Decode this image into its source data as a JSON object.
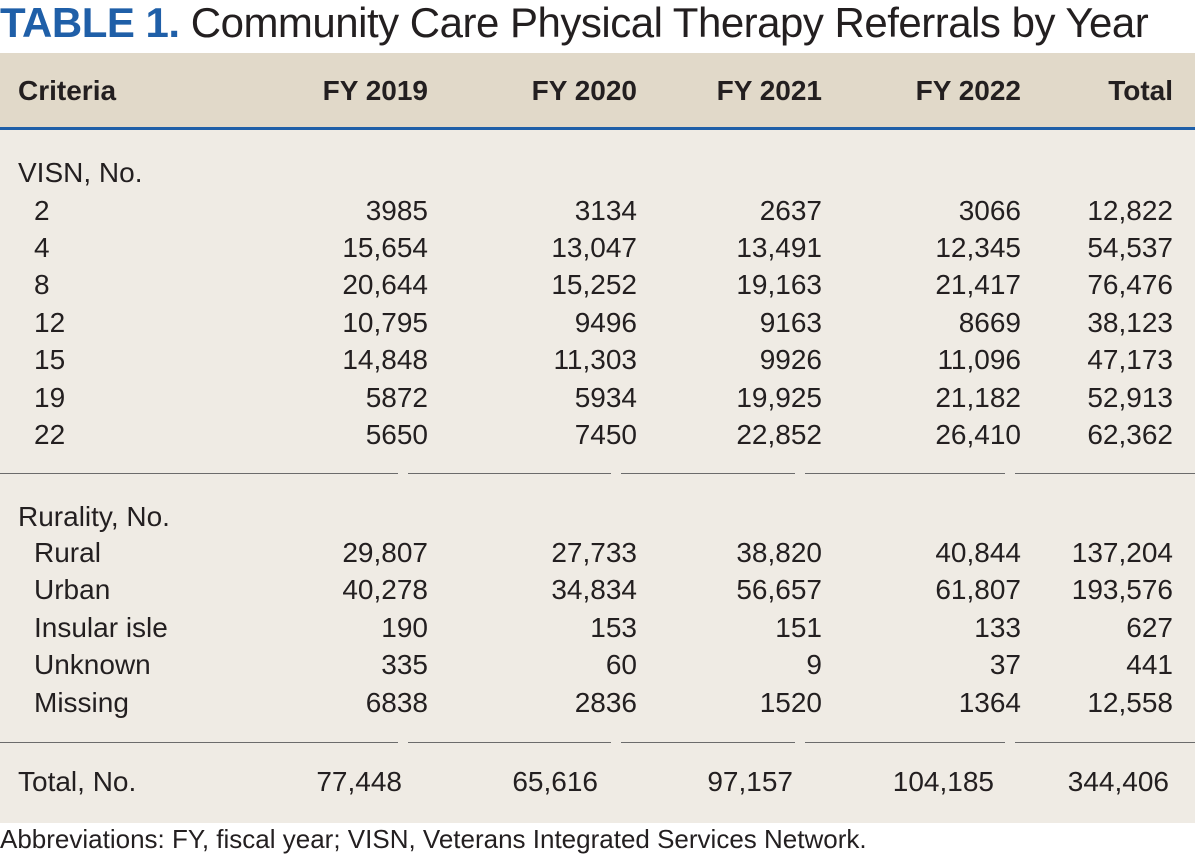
{
  "title": {
    "label": "TABLE 1.",
    "text": "Community Care Physical Therapy Referrals by Year"
  },
  "columns": [
    "Criteria",
    "FY 2019",
    "FY 2020",
    "FY 2021",
    "FY 2022",
    "Total"
  ],
  "sections": [
    {
      "heading": "VISN, No.",
      "rows": [
        {
          "label": "2",
          "values": [
            "3985",
            "3134",
            "2637",
            "3066",
            "12,822"
          ]
        },
        {
          "label": "4",
          "values": [
            "15,654",
            "13,047",
            "13,491",
            "12,345",
            "54,537"
          ]
        },
        {
          "label": "8",
          "values": [
            "20,644",
            "15,252",
            "19,163",
            "21,417",
            "76,476"
          ]
        },
        {
          "label": "12",
          "values": [
            "10,795",
            "9496",
            "9163",
            "8669",
            "38,123"
          ]
        },
        {
          "label": "15",
          "values": [
            "14,848",
            "11,303",
            "9926",
            "11,096",
            "47,173"
          ]
        },
        {
          "label": "19",
          "values": [
            "5872",
            "5934",
            "19,925",
            "21,182",
            "52,913"
          ]
        },
        {
          "label": "22",
          "values": [
            "5650",
            "7450",
            "22,852",
            "26,410",
            "62,362"
          ]
        }
      ]
    },
    {
      "heading": "Rurality, No.",
      "rows": [
        {
          "label": "Rural",
          "values": [
            "29,807",
            "27,733",
            "38,820",
            "40,844",
            "137,204"
          ]
        },
        {
          "label": "Urban",
          "values": [
            "40,278",
            "34,834",
            "56,657",
            "61,807",
            "193,576"
          ]
        },
        {
          "label": "Insular isle",
          "values": [
            "190",
            "153",
            "151",
            "133",
            "627"
          ]
        },
        {
          "label": "Unknown",
          "values": [
            "335",
            "60",
            "9",
            "37",
            "441"
          ]
        },
        {
          "label": "Missing",
          "values": [
            "6838",
            "2836",
            "1520",
            "1364",
            "12,558"
          ]
        }
      ]
    }
  ],
  "total_row": {
    "label": "Total, No.",
    "values": [
      "77,448",
      "65,616",
      "97,157",
      "104,185",
      "344,406"
    ]
  },
  "footnote": "Abbreviations: FY, fiscal year; VISN, Veterans Integrated Services Network.",
  "colors": {
    "title_label": "#1f5fa8",
    "header_band": "#e1d9c9",
    "panel": "#efebe4",
    "rule": "#1f5fa8"
  }
}
